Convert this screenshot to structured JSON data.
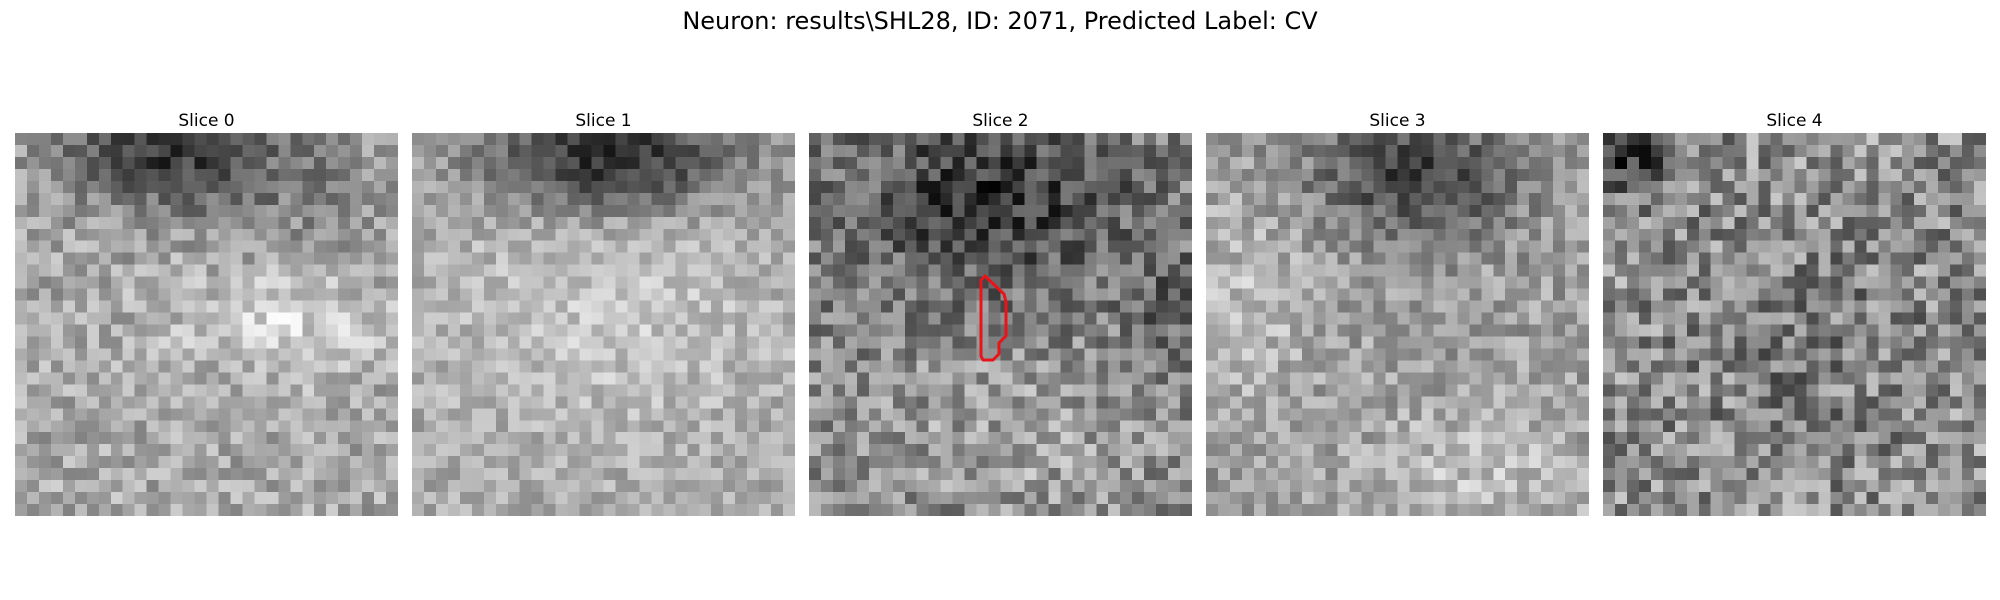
{
  "figure": {
    "title": "Neuron: results\\SHL28, ID: 2071, Predicted Label: CV",
    "slices": [
      {
        "title": "Slice 0",
        "has_outline": false
      },
      {
        "title": "Slice 1",
        "has_outline": false
      },
      {
        "title": "Slice 2",
        "has_outline": true,
        "outline_color": "#e8141a"
      },
      {
        "title": "Slice 3",
        "has_outline": false
      },
      {
        "title": "Slice 4",
        "has_outline": false
      }
    ],
    "colormap": "gray"
  }
}
